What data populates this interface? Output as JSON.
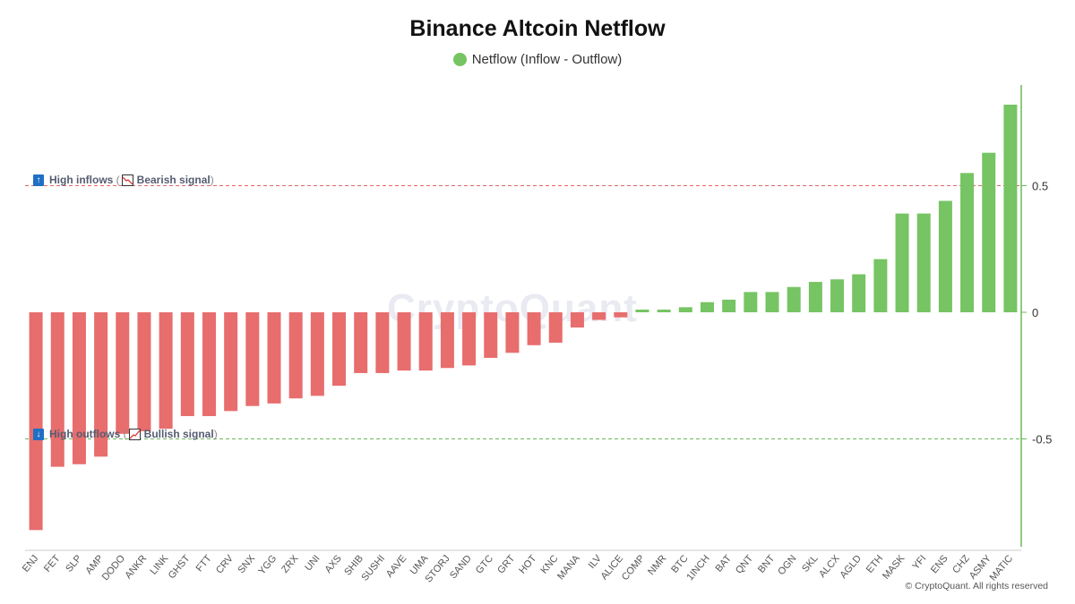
{
  "title": "Binance Altcoin Netflow",
  "legend": {
    "label": "Netflow (Inflow - Outflow)",
    "color": "#76c463"
  },
  "watermark": "CryptoQuant",
  "copyright": "© CryptoQuant. All rights reserved",
  "annotations": {
    "high": {
      "label": "High inflows",
      "signal": "Bearish signal",
      "icon": "arrow-up-icon",
      "line_value": 0.5,
      "line_color": "#e06666"
    },
    "low": {
      "label": "High outflows",
      "signal": "Bullish signal",
      "icon": "arrow-down-icon",
      "line_value": -0.5,
      "line_color": "#6bb85a"
    }
  },
  "chart_data": {
    "type": "bar",
    "categories": [
      "ENJ",
      "FET",
      "SLP",
      "AMP",
      "DODO",
      "ANKR",
      "LINK",
      "GHST",
      "FTT",
      "CRV",
      "SNX",
      "YGG",
      "ZRX",
      "UNI",
      "AXS",
      "SHIB",
      "SUSHI",
      "AAVE",
      "UMA",
      "STORJ",
      "SAND",
      "GTC",
      "GRT",
      "HOT",
      "KNC",
      "MANA",
      "ILV",
      "ALICE",
      "COMP",
      "NMR",
      "BTC",
      "1INCH",
      "BAT",
      "QNT",
      "BNT",
      "OGN",
      "SKL",
      "ALCX",
      "AGLD",
      "ETH",
      "MASK",
      "YFI",
      "ENS",
      "CHZ",
      "ASMY",
      "MATIC"
    ],
    "series": [
      {
        "values": [
          -0.86,
          -0.61,
          -0.6,
          -0.57,
          -0.48,
          -0.47,
          -0.46,
          -0.41,
          -0.41,
          -0.39,
          -0.37,
          -0.36,
          -0.34,
          -0.33,
          -0.29,
          -0.24,
          -0.24,
          -0.23,
          -0.23,
          -0.22,
          -0.21,
          -0.18,
          -0.16,
          -0.13,
          -0.12,
          -0.06,
          -0.03,
          -0.02,
          0.0,
          0.01,
          0.02,
          0.04,
          0.05,
          0.08,
          0.08,
          0.1,
          0.12,
          0.13,
          0.15,
          0.21,
          0.39,
          0.39,
          0.44,
          0.55,
          0.63,
          0.82
        ]
      }
    ],
    "yticks": [
      0.5,
      0,
      -0.5
    ],
    "ytick_labels": [
      "0.5",
      "0",
      "-0.5"
    ],
    "ylim": [
      -0.93,
      0.9
    ],
    "positive_color": "#76c463",
    "negative_color": "#e86d6d",
    "grid": false,
    "legend_position": "top"
  }
}
